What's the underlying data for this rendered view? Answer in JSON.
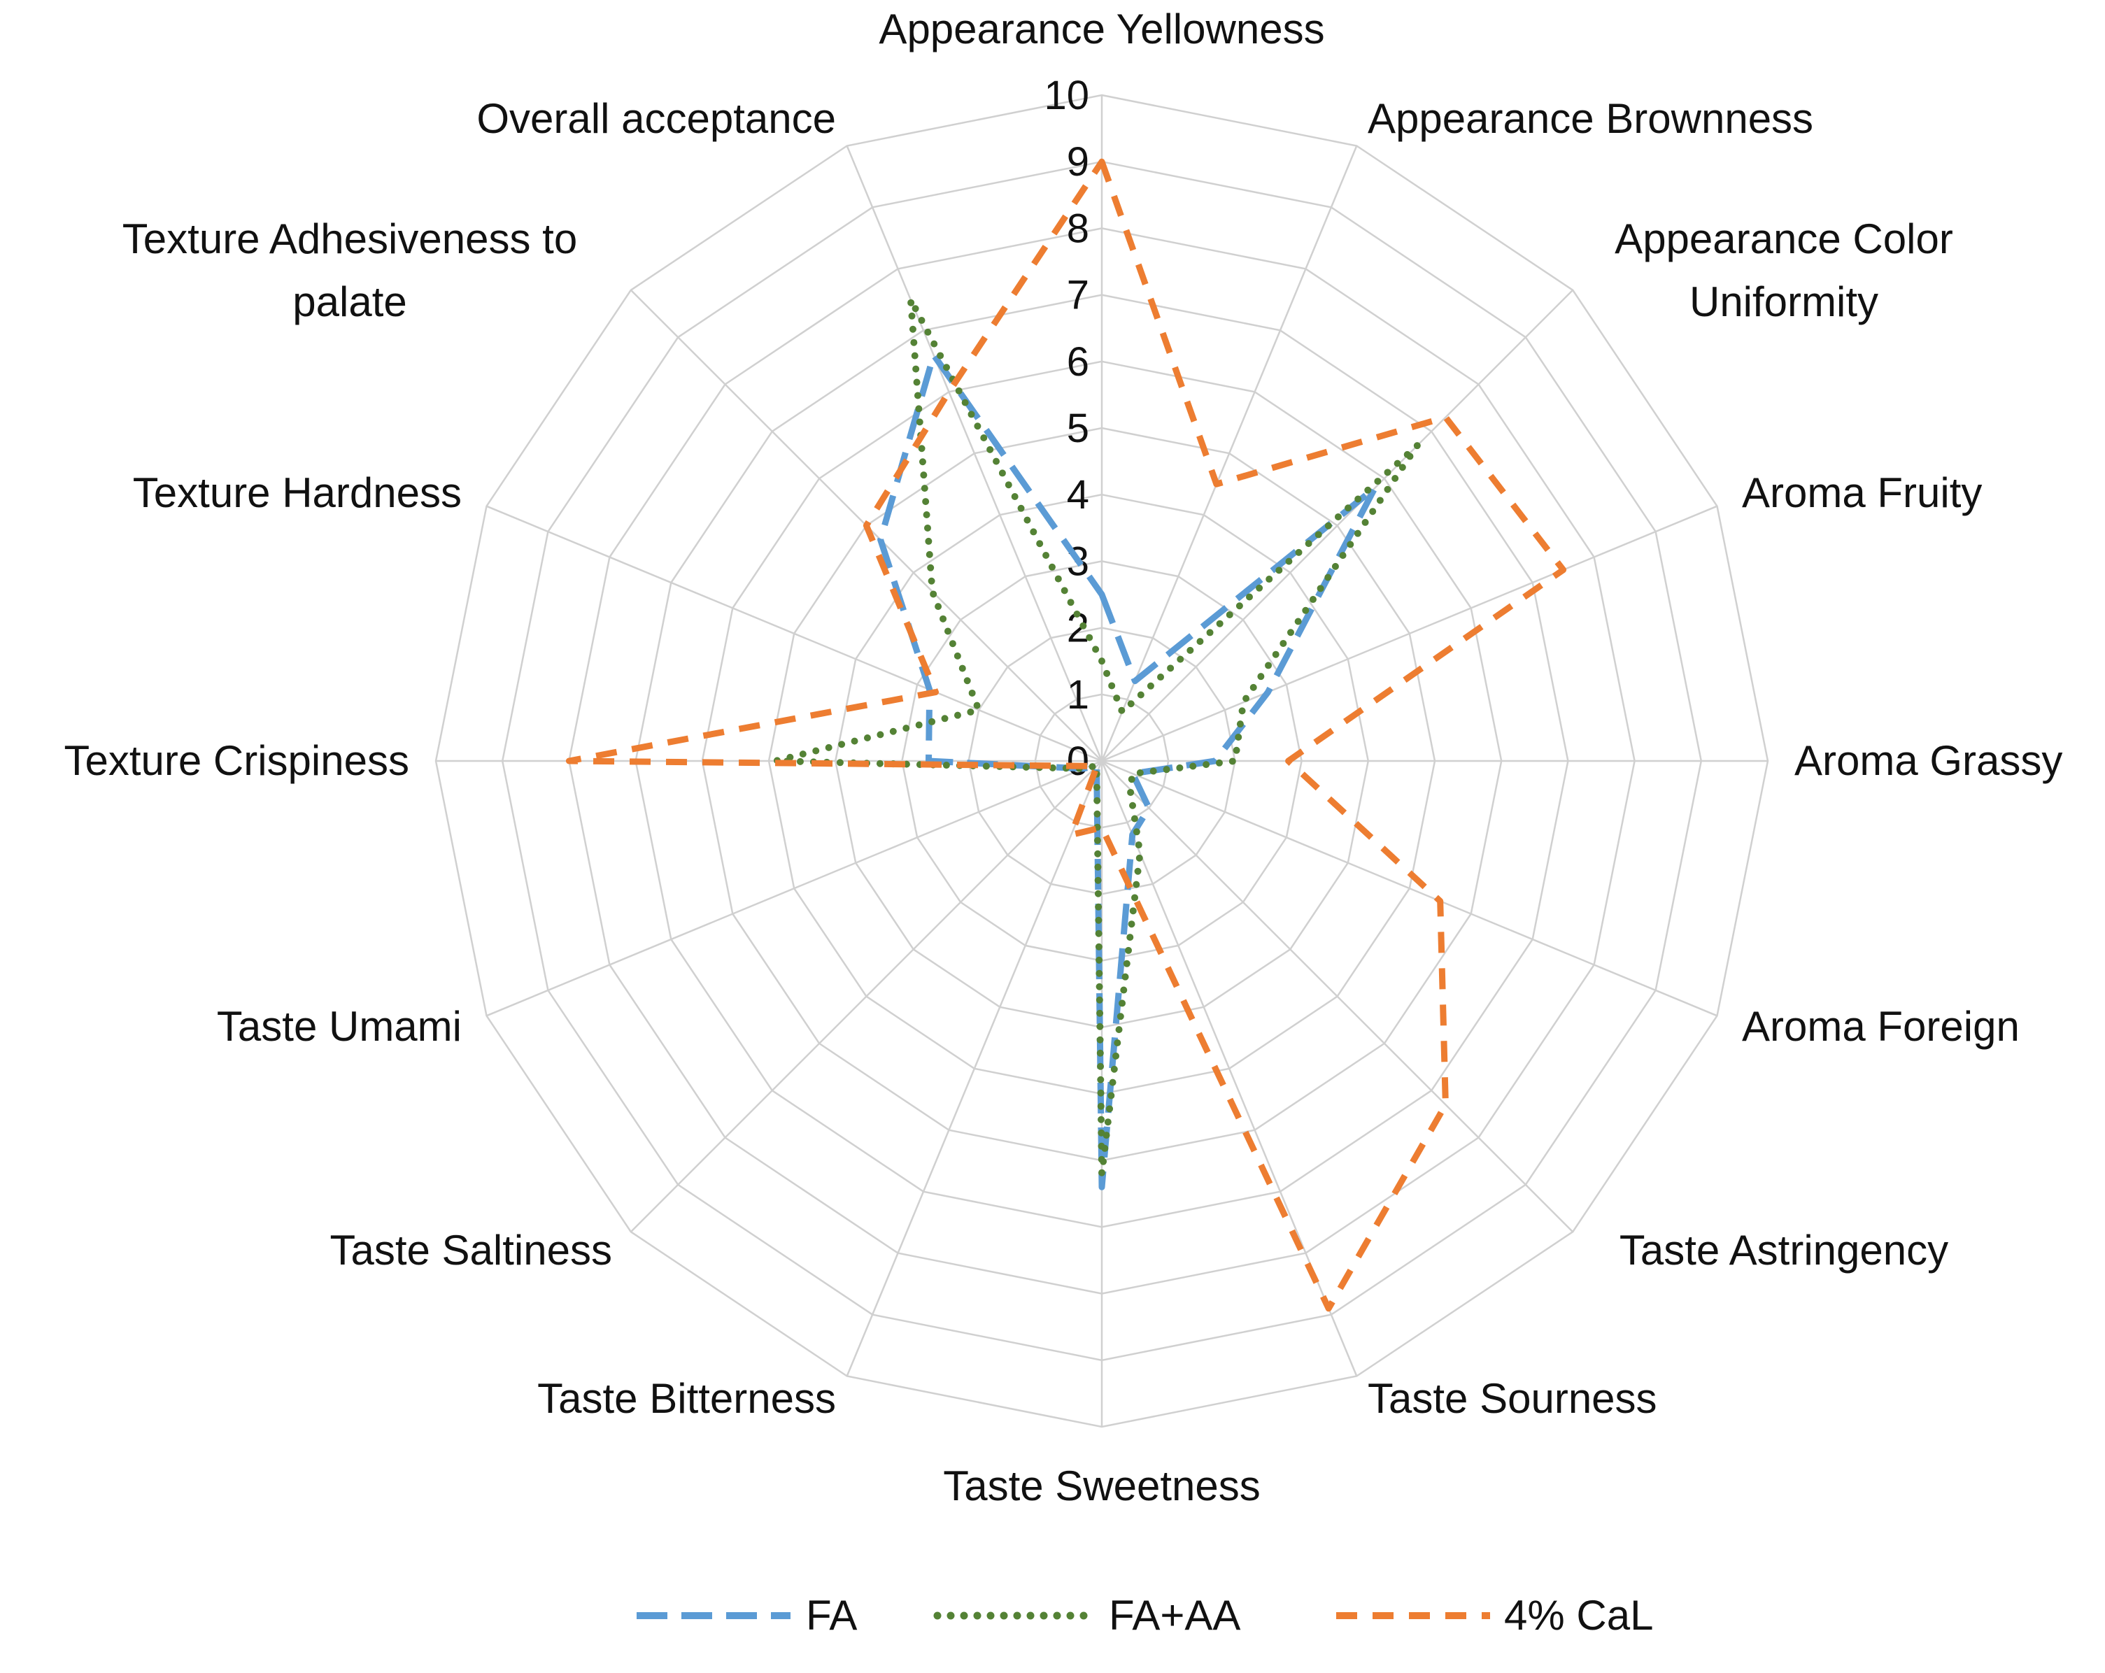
{
  "chart_data": {
    "type": "radar",
    "title": "",
    "rlim": [
      0,
      10
    ],
    "ticks": [
      "0",
      "1",
      "2",
      "3",
      "4",
      "5",
      "6",
      "7",
      "8",
      "9",
      "10"
    ],
    "categories": [
      "Appearance Yellowness",
      "Appearance Brownness",
      "Appearance Color Uniformity",
      "Aroma Fruity",
      "Aroma Grassy",
      "Aroma Foreign",
      "Taste Astringency",
      "Taste Sourness",
      "Taste Sweetness",
      "Taste Bitterness",
      "Taste Saltiness",
      "Taste Umami",
      "Texture Crispiness",
      "Texture Hardness",
      "Texture Adhesiveness to palate",
      "Overall acceptance"
    ],
    "series": [
      {
        "name": "FA",
        "color": "#5b9bd5",
        "dash": "dash",
        "values": [
          2.5,
          1.3,
          5.8,
          2.7,
          1.7,
          0.5,
          1.0,
          1.2,
          6.4,
          0.2,
          0.1,
          0.3,
          2.6,
          2.8,
          4.7,
          6.6
        ]
      },
      {
        "name": "FA+AA",
        "color": "#548235",
        "dash": "dot",
        "values": [
          1.5,
          0.8,
          6.7,
          2.3,
          2.0,
          0.5,
          0.6,
          1.5,
          6.2,
          0.2,
          0.1,
          0.3,
          4.9,
          2.0,
          3.6,
          7.5
        ]
      },
      {
        "name": "4% CaL",
        "color": "#ed7d31",
        "dash": "short-dash",
        "values": [
          9.0,
          4.5,
          7.3,
          7.5,
          2.8,
          5.5,
          7.3,
          8.9,
          1.0,
          1.2,
          0.1,
          0.2,
          8.0,
          2.7,
          5.0,
          6.0
        ]
      }
    ],
    "legend_position": "bottom"
  }
}
